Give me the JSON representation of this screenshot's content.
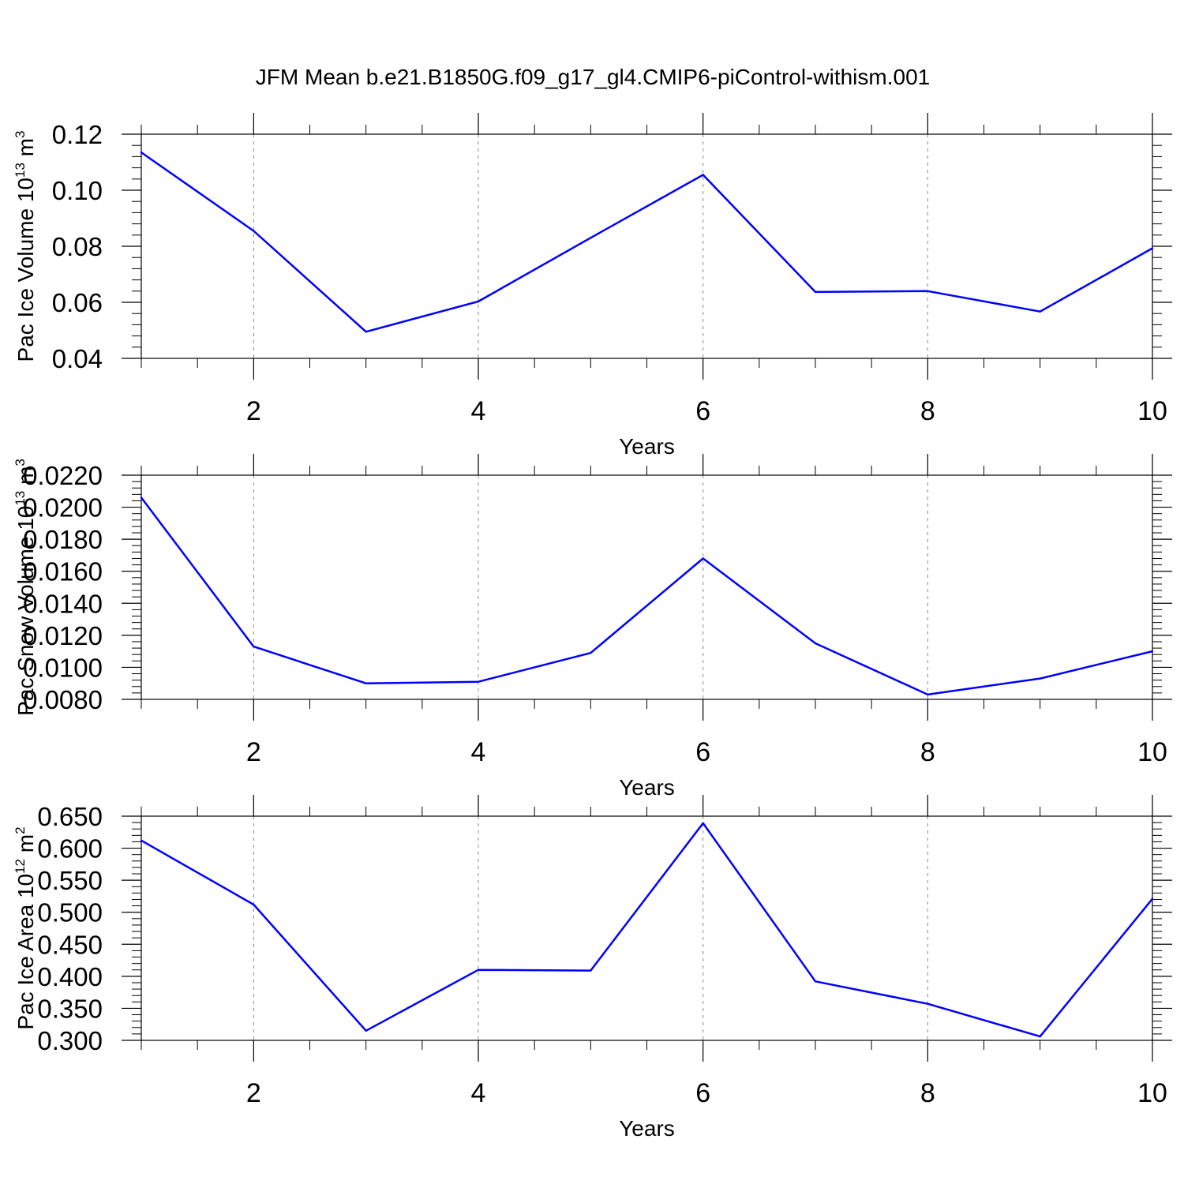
{
  "title": "JFM Mean b.e21.B1850G.f09_g17_gl4.CMIP6-piControl-withism.001",
  "colors": {
    "series": "#0000ff",
    "axes": "#000000",
    "grid": "#888888"
  },
  "chart_data": [
    {
      "type": "line",
      "ylabel": "Pac Ice Volume 10",
      "ylabel_exp": "13",
      "ylabel_unit": " m",
      "ylabel_unit_exp": "3",
      "xlabel": "Years",
      "xlim": [
        1,
        10
      ],
      "ylim": [
        0.04,
        0.12
      ],
      "x_ticks": [
        2,
        4,
        6,
        8,
        10
      ],
      "x_tick_labels": [
        "2",
        "4",
        "6",
        "8",
        "10"
      ],
      "y_ticks": [
        0.04,
        0.06,
        0.08,
        0.1,
        0.12
      ],
      "y_tick_labels": [
        "0.04",
        "0.06",
        "0.08",
        "0.10",
        "0.12"
      ],
      "grid": "vertical dashed at major x ticks",
      "x": [
        1,
        2,
        3,
        4,
        5,
        6,
        7,
        8,
        9,
        10
      ],
      "values": [
        0.1135,
        0.0855,
        0.0495,
        0.0603,
        0.083,
        0.1055,
        0.0637,
        0.064,
        0.0567,
        0.0793
      ]
    },
    {
      "type": "line",
      "ylabel": "Pac Snow Volume 10",
      "ylabel_exp": "13",
      "ylabel_unit": " m",
      "ylabel_unit_exp": "3",
      "xlabel": "Years",
      "xlim": [
        1,
        10
      ],
      "ylim": [
        0.008,
        0.022
      ],
      "x_ticks": [
        2,
        4,
        6,
        8,
        10
      ],
      "x_tick_labels": [
        "2",
        "4",
        "6",
        "8",
        "10"
      ],
      "y_ticks": [
        0.008,
        0.01,
        0.012,
        0.014,
        0.016,
        0.018,
        0.02,
        0.022
      ],
      "y_tick_labels": [
        "0.0080",
        "0.0100",
        "0.0120",
        "0.0140",
        "0.0160",
        "0.0180",
        "0.0200",
        "0.0220"
      ],
      "grid": "vertical dashed at major x ticks",
      "x": [
        1,
        2,
        3,
        4,
        5,
        6,
        7,
        8,
        9,
        10
      ],
      "values": [
        0.0206,
        0.0113,
        0.009,
        0.0091,
        0.0109,
        0.0168,
        0.0115,
        0.0083,
        0.0093,
        0.011
      ]
    },
    {
      "type": "line",
      "ylabel": "Pac Ice Area 10",
      "ylabel_exp": "12",
      "ylabel_unit": " m",
      "ylabel_unit_exp": "2",
      "xlabel": "Years",
      "xlim": [
        1,
        10
      ],
      "ylim": [
        0.3,
        0.65
      ],
      "x_ticks": [
        2,
        4,
        6,
        8,
        10
      ],
      "x_tick_labels": [
        "2",
        "4",
        "6",
        "8",
        "10"
      ],
      "y_ticks": [
        0.3,
        0.35,
        0.4,
        0.45,
        0.5,
        0.55,
        0.6,
        0.65
      ],
      "y_tick_labels": [
        "0.300",
        "0.350",
        "0.400",
        "0.450",
        "0.500",
        "0.550",
        "0.600",
        "0.650"
      ],
      "grid": "vertical dashed at major x ticks",
      "x": [
        1,
        2,
        3,
        4,
        5,
        6,
        7,
        8,
        9,
        10
      ],
      "values": [
        0.612,
        0.512,
        0.315,
        0.41,
        0.409,
        0.639,
        0.392,
        0.357,
        0.306,
        0.521
      ]
    }
  ]
}
